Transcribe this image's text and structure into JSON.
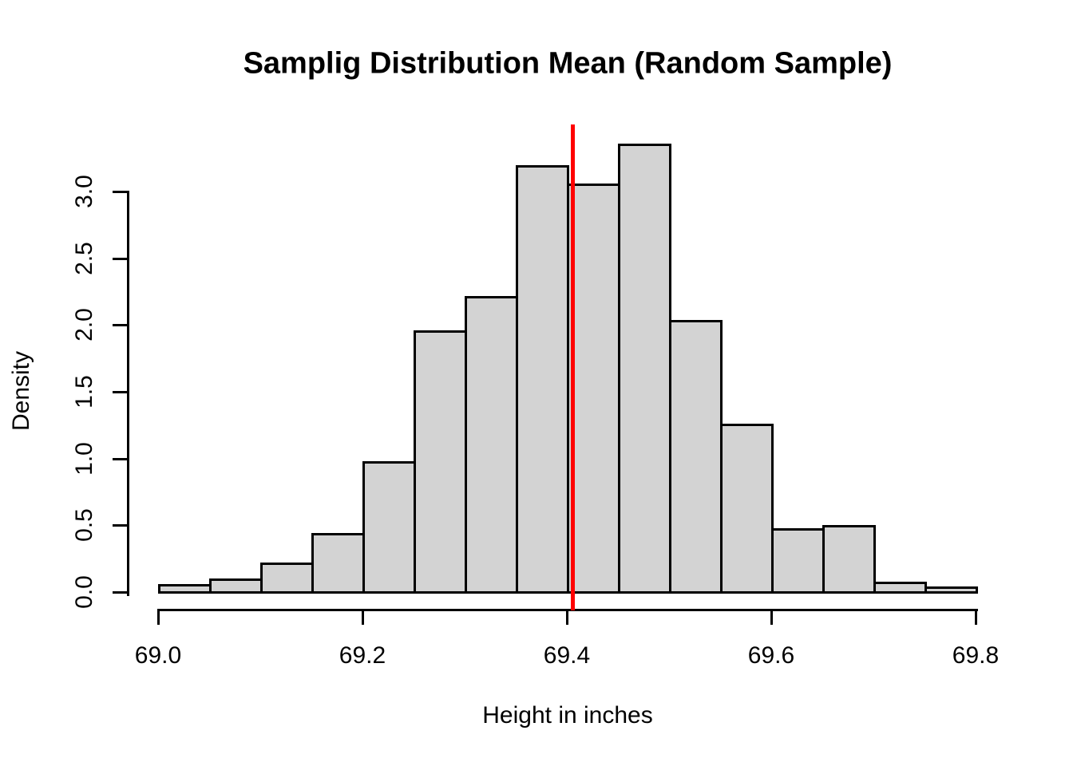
{
  "chart_data": {
    "type": "bar",
    "subtype": "histogram",
    "title": "Samplig Distribution Mean (Random Sample)",
    "xlabel": "Height in inches",
    "ylabel": "Density",
    "bin_start": 69.0,
    "bin_width": 0.05,
    "bin_edges": [
      69.0,
      69.05,
      69.1,
      69.15,
      69.2,
      69.25,
      69.3,
      69.35,
      69.4,
      69.45,
      69.5,
      69.55,
      69.6,
      69.65,
      69.7,
      69.75,
      69.8
    ],
    "densities": [
      0.06,
      0.1,
      0.22,
      0.44,
      0.98,
      1.96,
      2.22,
      3.2,
      3.06,
      3.36,
      2.04,
      1.26,
      0.48,
      0.5,
      0.08,
      0.04
    ],
    "x_tick_values": [
      69.0,
      69.2,
      69.4,
      69.6,
      69.8
    ],
    "x_tick_labels": [
      "69.0",
      "69.2",
      "69.4",
      "69.6",
      "69.8"
    ],
    "y_tick_values": [
      0.0,
      0.5,
      1.0,
      1.5,
      2.0,
      2.5,
      3.0
    ],
    "y_tick_labels": [
      "0.0",
      "0.5",
      "1.0",
      "1.5",
      "2.0",
      "2.5",
      "3.0"
    ],
    "xlim": [
      69.0,
      69.8
    ],
    "ylim": [
      0,
      3.5
    ],
    "grid": false,
    "legend": null,
    "mean_line": {
      "x": 69.406,
      "color": "#ff0000"
    },
    "colors": {
      "bar_fill": "#d3d3d3",
      "bar_border": "#000000",
      "axis": "#000000",
      "background": "#ffffff",
      "text": "#000000"
    }
  }
}
